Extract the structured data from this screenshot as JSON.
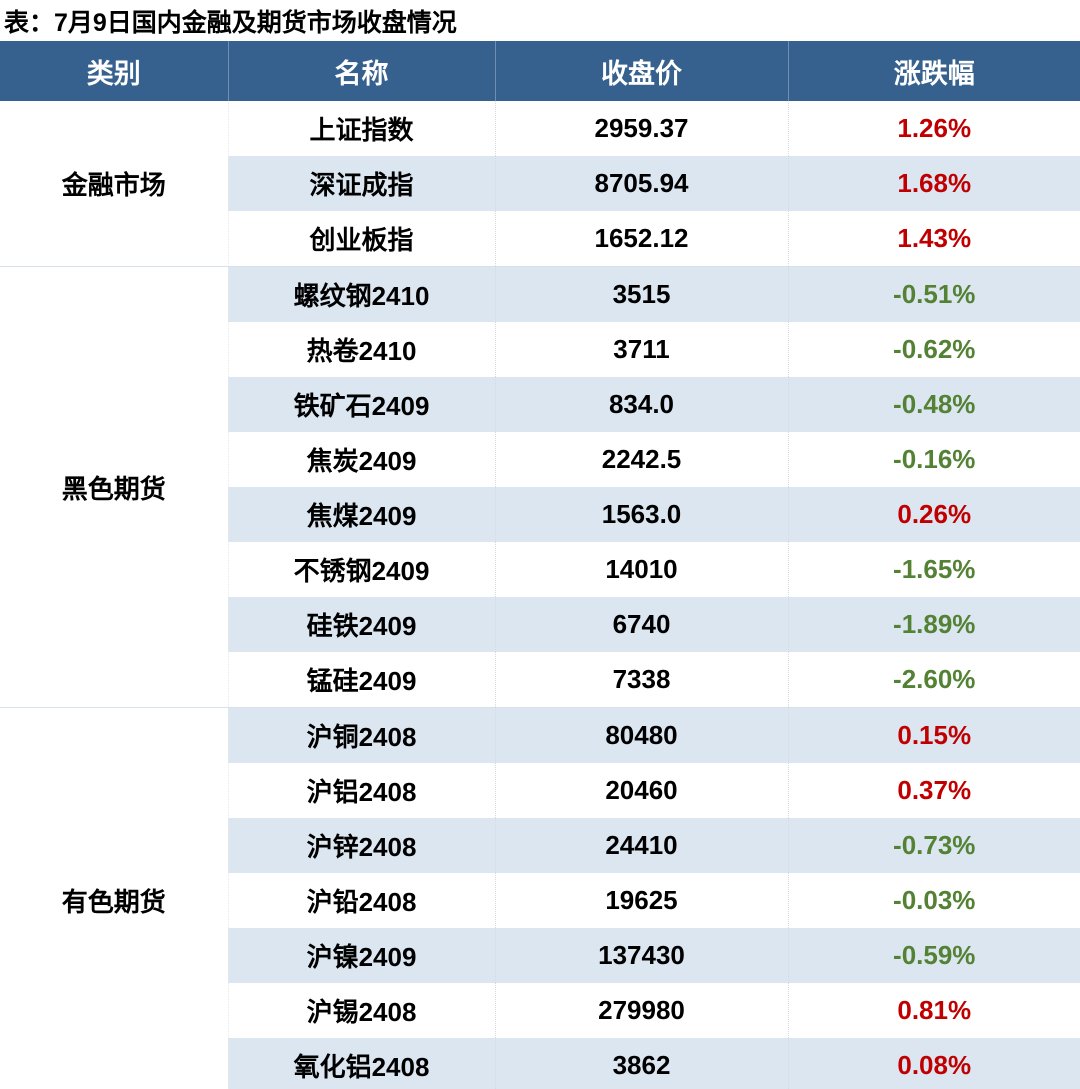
{
  "chart_data": {
    "type": "table",
    "title": "表：7月9日国内金融及期货市场收盘情况",
    "columns": [
      "类别",
      "名称",
      "收盘价",
      "涨跌幅"
    ],
    "groups": [
      {
        "category": "金融市场",
        "rows": [
          {
            "name": "上证指数",
            "close": "2959.37",
            "change": "1.26%",
            "direction": "up"
          },
          {
            "name": "深证成指",
            "close": "8705.94",
            "change": "1.68%",
            "direction": "up"
          },
          {
            "name": "创业板指",
            "close": "1652.12",
            "change": "1.43%",
            "direction": "up"
          }
        ]
      },
      {
        "category": "黑色期货",
        "rows": [
          {
            "name": "螺纹钢2410",
            "close": "3515",
            "change": "-0.51%",
            "direction": "down"
          },
          {
            "name": "热卷2410",
            "close": "3711",
            "change": "-0.62%",
            "direction": "down"
          },
          {
            "name": "铁矿石2409",
            "close": "834.0",
            "change": "-0.48%",
            "direction": "down"
          },
          {
            "name": "焦炭2409",
            "close": "2242.5",
            "change": "-0.16%",
            "direction": "down"
          },
          {
            "name": "焦煤2409",
            "close": "1563.0",
            "change": "0.26%",
            "direction": "up"
          },
          {
            "name": "不锈钢2409",
            "close": "14010",
            "change": "-1.65%",
            "direction": "down"
          },
          {
            "name": "硅铁2409",
            "close": "6740",
            "change": "-1.89%",
            "direction": "down"
          },
          {
            "name": "锰硅2409",
            "close": "7338",
            "change": "-2.60%",
            "direction": "down"
          }
        ]
      },
      {
        "category": "有色期货",
        "rows": [
          {
            "name": "沪铜2408",
            "close": "80480",
            "change": "0.15%",
            "direction": "up"
          },
          {
            "name": "沪铝2408",
            "close": "20460",
            "change": "0.37%",
            "direction": "up"
          },
          {
            "name": "沪锌2408",
            "close": "24410",
            "change": "-0.73%",
            "direction": "down"
          },
          {
            "name": "沪铅2408",
            "close": "19625",
            "change": "-0.03%",
            "direction": "down"
          },
          {
            "name": "沪镍2409",
            "close": "137430",
            "change": "-0.59%",
            "direction": "down"
          },
          {
            "name": "沪锡2408",
            "close": "279980",
            "change": "0.81%",
            "direction": "up"
          },
          {
            "name": "氧化铝2408",
            "close": "3862",
            "change": "0.08%",
            "direction": "up"
          }
        ]
      }
    ],
    "layout": {
      "grid": "row-striped",
      "stripe_rows": "even",
      "legend": "none"
    }
  },
  "colors": {
    "header_bg": "#36618E",
    "stripe_bg": "#DCE6F1",
    "up_red": "#C00000",
    "down_green": "#548235",
    "bottom_border": "#36618E"
  }
}
